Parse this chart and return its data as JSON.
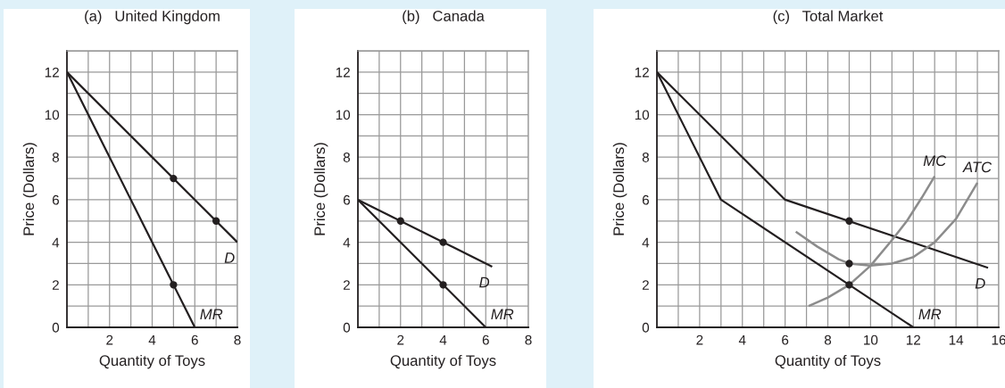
{
  "chart_data": [
    {
      "type": "line",
      "title": "(a)   United Kingdom",
      "xlabel": "Quantity of Toys",
      "ylabel": "Price (Dollars)",
      "xlim": [
        0,
        8
      ],
      "ylim": [
        0,
        13
      ],
      "xticks": [
        {
          "value": 1,
          "label": null
        },
        2,
        {
          "value": 3,
          "label": null
        },
        4,
        {
          "value": 5,
          "label": null
        },
        6,
        {
          "value": 7,
          "label": null
        },
        8
      ],
      "yticks": [
        0,
        {
          "value": 1,
          "label": null
        },
        2,
        {
          "value": 3,
          "label": null
        },
        4,
        {
          "value": 5,
          "label": null
        },
        6,
        {
          "value": 7,
          "label": null
        },
        8,
        {
          "value": 9,
          "label": null
        },
        10,
        {
          "value": 11,
          "label": null
        },
        12,
        {
          "value": 13,
          "label": null
        }
      ],
      "grid": true,
      "legend": false,
      "series": [
        {
          "name": "D",
          "color": "#231f20",
          "x": [
            0,
            8
          ],
          "values": [
            12,
            4
          ]
        },
        {
          "name": "MR",
          "color": "#231f20",
          "x": [
            0,
            6
          ],
          "values": [
            12,
            0
          ]
        },
        {
          "type": "scatter",
          "color": "#231f20",
          "marker": "circle",
          "x": [
            5,
            7,
            5
          ],
          "values": [
            7,
            5,
            2
          ]
        }
      ]
    },
    {
      "type": "line",
      "title": "(b)   Canada",
      "xlabel": "Quantity of Toys",
      "ylabel": "Price (Dollars)",
      "xlim": [
        0,
        8
      ],
      "ylim": [
        0,
        13
      ],
      "xticks": [
        {
          "value": 1,
          "label": null
        },
        2,
        {
          "value": 3,
          "label": null
        },
        4,
        {
          "value": 5,
          "label": null
        },
        6,
        {
          "value": 7,
          "label": null
        },
        8
      ],
      "yticks": [
        0,
        {
          "value": 1,
          "label": null
        },
        2,
        {
          "value": 3,
          "label": null
        },
        4,
        {
          "value": 5,
          "label": null
        },
        6,
        {
          "value": 7,
          "label": null
        },
        8,
        {
          "value": 9,
          "label": null
        },
        10,
        {
          "value": 11,
          "label": null
        },
        12,
        {
          "value": 13,
          "label": null
        }
      ],
      "grid": true,
      "legend": false,
      "series": [
        {
          "name": "D",
          "color": "#231f20",
          "x": [
            0,
            6.3
          ],
          "values": [
            6,
            2.85
          ]
        },
        {
          "name": "MR",
          "color": "#231f20",
          "x": [
            0,
            6
          ],
          "values": [
            6,
            0
          ]
        },
        {
          "type": "scatter",
          "color": "#231f20",
          "marker": "circle",
          "x": [
            2,
            4,
            4
          ],
          "values": [
            5,
            4,
            2
          ]
        }
      ]
    },
    {
      "type": "line",
      "title": "(c)   Total Market",
      "xlabel": "Quantity of Toys",
      "ylabel": "Price (Dollars)",
      "xlim": [
        0,
        16
      ],
      "ylim": [
        0,
        13
      ],
      "xticks": [
        {
          "value": 1,
          "label": null
        },
        2,
        {
          "value": 3,
          "label": null
        },
        4,
        {
          "value": 5,
          "label": null
        },
        6,
        {
          "value": 7,
          "label": null
        },
        8,
        {
          "value": 9,
          "label": null
        },
        10,
        {
          "value": 11,
          "label": null
        },
        12,
        {
          "value": 13,
          "label": null
        },
        14,
        {
          "value": 15,
          "label": null
        },
        16
      ],
      "yticks": [
        0,
        {
          "value": 1,
          "label": null
        },
        2,
        {
          "value": 3,
          "label": null
        },
        4,
        {
          "value": 5,
          "label": null
        },
        6,
        {
          "value": 7,
          "label": null
        },
        8,
        {
          "value": 9,
          "label": null
        },
        10,
        {
          "value": 11,
          "label": null
        },
        12,
        {
          "value": 13,
          "label": null
        }
      ],
      "grid": true,
      "legend": false,
      "series": [
        {
          "name": "D",
          "color": "#231f20",
          "x": [
            0,
            6,
            15.5
          ],
          "values": [
            12,
            6,
            2.8
          ]
        },
        {
          "name": "MR",
          "color": "#231f20",
          "x": [
            0,
            3,
            12
          ],
          "values": [
            12,
            6,
            0
          ]
        },
        {
          "name": "MC",
          "color": "#8c8c8c",
          "x": [
            7.1,
            8,
            9,
            10,
            11,
            11.7,
            12.4,
            13
          ],
          "values": [
            1,
            1.4,
            2,
            2.9,
            4.1,
            5,
            6.1,
            7.1
          ]
        },
        {
          "name": "ATC",
          "color": "#8c8c8c",
          "x": [
            6.5,
            7.5,
            8.5,
            9,
            10,
            11,
            12,
            13,
            14,
            15
          ],
          "values": [
            4.5,
            3.8,
            3.2,
            3,
            2.9,
            3,
            3.3,
            4,
            5.1,
            6.8
          ]
        },
        {
          "type": "scatter",
          "color": "#231f20",
          "marker": "circle",
          "x": [
            9,
            9,
            9
          ],
          "values": [
            5,
            3,
            2
          ]
        }
      ]
    }
  ]
}
